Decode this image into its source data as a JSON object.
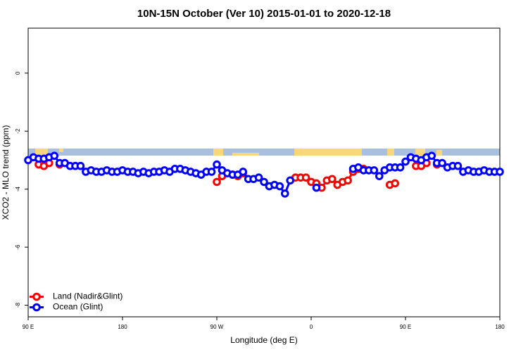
{
  "chart_data": {
    "type": "line",
    "title": "10N-15N October (Ver 10)   2015-01-01 to 2020-12-18",
    "x_label": "Longitude (deg E)",
    "y_label": "XCO2 - MLO trend (ppm)",
    "x": [
      90,
      95,
      100,
      105,
      110,
      115,
      120,
      125,
      130,
      135,
      140,
      145,
      150,
      155,
      160,
      165,
      170,
      175,
      180,
      185,
      190,
      195,
      200,
      205,
      210,
      215,
      220,
      225,
      230,
      235,
      240,
      245,
      250,
      255,
      260,
      265,
      270,
      275,
      280,
      285,
      290,
      295,
      300,
      305,
      310,
      315,
      320,
      325,
      330,
      335,
      340,
      345,
      350,
      355,
      360,
      365,
      370,
      375,
      380,
      385,
      390,
      395,
      400,
      405,
      410,
      415,
      420,
      425,
      430,
      435,
      440,
      445,
      450,
      455,
      460,
      465,
      470,
      475,
      480,
      485,
      490,
      495,
      500,
      505,
      510,
      515,
      520,
      525,
      530,
      535,
      540
    ],
    "series": [
      {
        "name": "Land (Nadir&Glint)",
        "color": "#ff0000",
        "values": [
          null,
          null,
          -3.15,
          -3.2,
          -3.1,
          null,
          -3.15,
          null,
          null,
          null,
          null,
          null,
          null,
          null,
          null,
          null,
          null,
          null,
          null,
          null,
          null,
          null,
          null,
          null,
          null,
          null,
          null,
          null,
          null,
          null,
          null,
          null,
          null,
          null,
          null,
          null,
          -3.75,
          -3.55,
          null,
          -3.5,
          -3.55,
          -3.45,
          null,
          null,
          null,
          null,
          null,
          null,
          null,
          null,
          null,
          -3.6,
          -3.6,
          -3.6,
          -3.75,
          -3.8,
          -3.95,
          -3.7,
          -3.65,
          -3.85,
          -3.75,
          -3.7,
          -3.4,
          -3.3,
          -3.3,
          null,
          null,
          null,
          null,
          -3.85,
          -3.8,
          null,
          null,
          null,
          -3.2,
          -3.2,
          -3.1,
          null,
          -3.15,
          null,
          null,
          null,
          null,
          null,
          null,
          null,
          null,
          null,
          null,
          null,
          null
        ]
      },
      {
        "name": "Ocean (Glint)",
        "color": "#0000ff",
        "values": [
          -3.0,
          -2.9,
          -2.95,
          -2.95,
          -2.9,
          -2.85,
          -3.1,
          -3.1,
          -3.2,
          -3.2,
          -3.2,
          -3.4,
          -3.35,
          -3.4,
          -3.4,
          -3.35,
          -3.4,
          -3.4,
          -3.35,
          -3.4,
          -3.4,
          -3.45,
          -3.4,
          -3.45,
          -3.4,
          -3.4,
          -3.35,
          -3.4,
          -3.3,
          -3.3,
          -3.35,
          -3.4,
          -3.45,
          -3.5,
          -3.4,
          -3.4,
          -3.15,
          -3.35,
          -3.45,
          -3.5,
          -3.5,
          -3.4,
          -3.65,
          -3.65,
          -3.6,
          -3.75,
          -3.9,
          -3.85,
          -3.9,
          -4.15,
          -3.7,
          null,
          null,
          null,
          null,
          -3.95,
          null,
          null,
          null,
          null,
          null,
          null,
          -3.3,
          -3.25,
          -3.35,
          -3.35,
          -3.35,
          -3.55,
          -3.35,
          -3.25,
          -3.25,
          -3.25,
          -3.05,
          -2.9,
          -2.95,
          -3.0,
          -2.9,
          -2.85,
          -3.1,
          -3.1,
          -3.25,
          -3.2,
          -3.2,
          -3.4,
          -3.35,
          -3.4,
          -3.4,
          -3.35,
          -3.4,
          -3.4,
          -3.4
        ]
      }
    ],
    "xlim": [
      90,
      540
    ],
    "xticks": [
      {
        "value": 90,
        "label": "90 E"
      },
      180,
      {
        "value": 270,
        "label": "90 W"
      },
      {
        "value": 360,
        "label": "0"
      },
      {
        "value": 450,
        "label": "90 E"
      },
      {
        "value": 540,
        "label": "180"
      }
    ],
    "ylim": [
      -8.4,
      1.55
    ],
    "yticks": [
      0,
      -2,
      -4,
      -6,
      -8
    ],
    "legend": "bottomleft"
  }
}
